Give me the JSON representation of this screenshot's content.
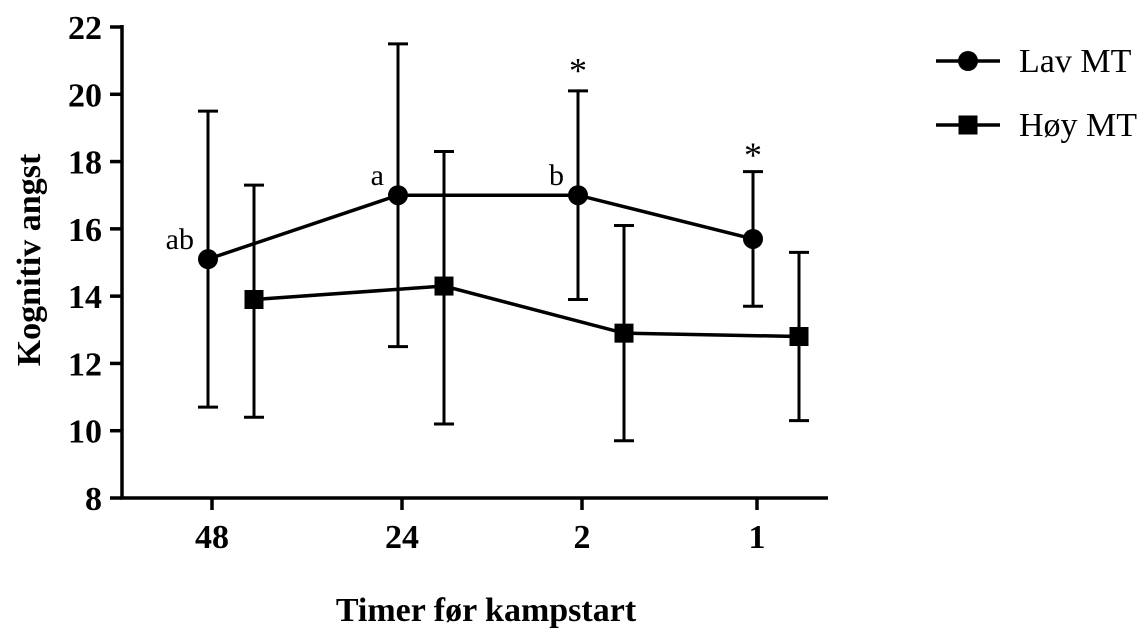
{
  "chart_data": {
    "type": "line",
    "xlabel": "Timer før kampstart",
    "ylabel": "Kognitiv angst",
    "categories": [
      "48",
      "24",
      "2",
      "1"
    ],
    "ylim": [
      8,
      22
    ],
    "yticks": [
      8,
      10,
      12,
      14,
      16,
      18,
      20,
      22
    ],
    "grid": false,
    "legend_position": "top-right",
    "series": [
      {
        "name": "Lav MT",
        "marker": "circle",
        "values": [
          15.1,
          17.0,
          17.0,
          15.7
        ],
        "error_low": [
          10.7,
          12.5,
          13.9,
          13.7
        ],
        "error_high": [
          19.5,
          21.5,
          20.1,
          17.7
        ],
        "labels": [
          "ab",
          "a",
          "b",
          ""
        ]
      },
      {
        "name": "Høy MT",
        "marker": "square",
        "values": [
          13.9,
          14.3,
          12.9,
          12.8
        ],
        "error_low": [
          10.4,
          10.2,
          9.7,
          10.3
        ],
        "error_high": [
          17.3,
          18.3,
          16.1,
          15.3
        ]
      }
    ],
    "annotations": [
      {
        "text": "*",
        "category": "2",
        "y": 21.0
      },
      {
        "text": "*",
        "category": "1",
        "y": 18.5
      }
    ]
  }
}
